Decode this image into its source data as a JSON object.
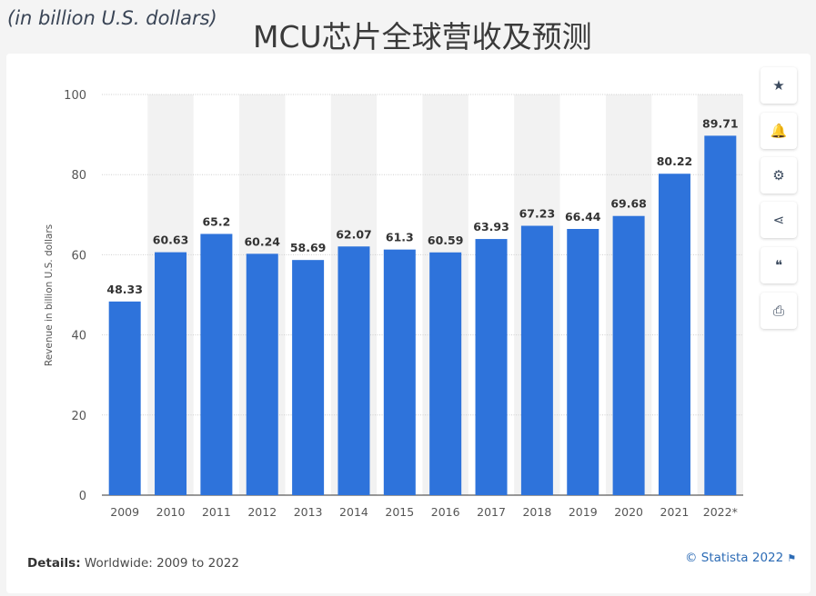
{
  "page": {
    "subtitle": "(in billion U.S. dollars)",
    "title": "MCU芯片全球营收及预测"
  },
  "footer": {
    "details_label": "Details:",
    "details_text": " Worldwide: 2009 to 2022",
    "credit": "© Statista 2022"
  },
  "toolbar": {
    "buttons": [
      {
        "name": "favorite-button",
        "icon": "star-icon",
        "glyph": "★"
      },
      {
        "name": "notification-button",
        "icon": "bell-icon",
        "glyph": "🔔"
      },
      {
        "name": "settings-button",
        "icon": "gear-icon",
        "glyph": "⚙"
      },
      {
        "name": "share-button",
        "icon": "share-icon",
        "glyph": "⋖"
      },
      {
        "name": "cite-button",
        "icon": "quote-icon",
        "glyph": "❝"
      },
      {
        "name": "print-button",
        "icon": "printer-icon",
        "glyph": "⎙"
      }
    ]
  },
  "colors": {
    "bar": "#2e73db",
    "band": "#f2f2f2",
    "grid": "#cfcfcf",
    "axis_text": "#555555",
    "label_text": "#333333",
    "credit": "#2c6bb5"
  },
  "chart_data": {
    "type": "bar",
    "title": "",
    "xlabel": "",
    "ylabel": "Revenue in billion U.S. dollars",
    "categories": [
      "2009",
      "2010",
      "2011",
      "2012",
      "2013",
      "2014",
      "2015",
      "2016",
      "2017",
      "2018",
      "2019",
      "2020",
      "2021",
      "2022*"
    ],
    "values": [
      48.33,
      60.63,
      65.2,
      60.24,
      58.69,
      62.07,
      61.3,
      60.59,
      63.93,
      67.23,
      66.44,
      69.68,
      80.22,
      89.71
    ],
    "value_labels": [
      "48.33",
      "60.63",
      "65.2",
      "60.24",
      "58.69",
      "62.07",
      "61.3",
      "60.59",
      "63.93",
      "67.23",
      "66.44",
      "69.68",
      "80.22",
      "89.71"
    ],
    "ylim": [
      0,
      100
    ],
    "yticks": [
      0,
      20,
      40,
      60,
      80,
      100
    ],
    "grid": true,
    "legend": "none"
  }
}
